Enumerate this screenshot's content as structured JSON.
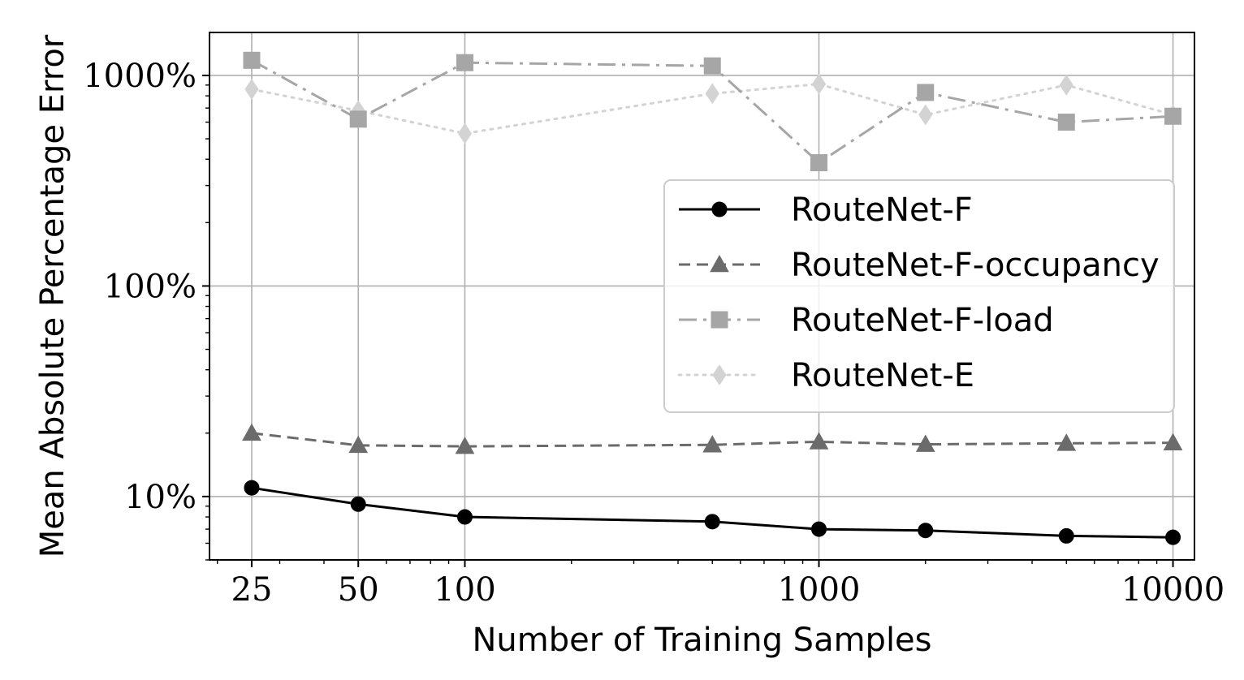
{
  "chart_data": {
    "type": "line",
    "xlabel": "Number of Training Samples",
    "ylabel": "Mean Absolute Percentage Error",
    "x_scale": "log",
    "y_scale": "log",
    "x": [
      25,
      50,
      100,
      500,
      1000,
      2000,
      5000,
      10000
    ],
    "x_ticks": [
      25,
      50,
      100,
      1000,
      10000
    ],
    "x_tick_labels": [
      "25",
      "50",
      "100",
      "1000",
      "10000"
    ],
    "y_ticks": [
      10,
      100,
      1000
    ],
    "y_tick_labels": [
      "10%",
      "100%",
      "1000%"
    ],
    "xlim": [
      19,
      11500
    ],
    "ylim": [
      5,
      1600
    ],
    "grid": true,
    "legend_position": "center-right",
    "series": [
      {
        "name": "RouteNet-F",
        "values": [
          11,
          9.2,
          8.0,
          7.6,
          7.0,
          6.9,
          6.5,
          6.4
        ],
        "color": "#000000",
        "linestyle": "solid",
        "marker": "circle"
      },
      {
        "name": "RouteNet-F-occupancy",
        "values": [
          20,
          17.5,
          17.3,
          17.6,
          18.2,
          17.7,
          17.9,
          18.0
        ],
        "color": "#6b6b6b",
        "linestyle": "dashed",
        "marker": "triangle"
      },
      {
        "name": "RouteNet-F-load",
        "values": [
          1180,
          620,
          1150,
          1110,
          385,
          830,
          600,
          640
        ],
        "color": "#a6a6a6",
        "linestyle": "dashdot",
        "marker": "square"
      },
      {
        "name": "RouteNet-E",
        "values": [
          860,
          680,
          530,
          820,
          910,
          650,
          900,
          650
        ],
        "color": "#d3d3d3",
        "linestyle": "dotted",
        "marker": "diamond"
      }
    ]
  }
}
